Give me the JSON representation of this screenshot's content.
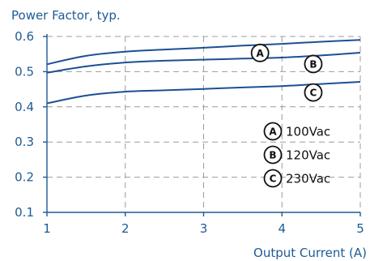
{
  "chart_data": {
    "type": "line",
    "title": "Power Factor, typ.",
    "xlabel": "Output Current (A)",
    "ylabel": "",
    "xlim": [
      1,
      5
    ],
    "ylim": [
      0.1,
      0.6
    ],
    "xticks": [
      "1",
      "2",
      "3",
      "4",
      "5"
    ],
    "yticks": [
      "0.1",
      "0.2",
      "0.3",
      "0.4",
      "0.5",
      "0.6"
    ],
    "grid": true,
    "series": [
      {
        "name": "A",
        "legend_label": "100Vac",
        "x": [
          1,
          1.5,
          2,
          2.5,
          3,
          3.5,
          4,
          4.5,
          5
        ],
        "values": [
          0.521,
          0.545,
          0.557,
          0.563,
          0.568,
          0.574,
          0.579,
          0.585,
          0.59
        ]
      },
      {
        "name": "B",
        "legend_label": "120Vac",
        "x": [
          1,
          1.5,
          2,
          2.5,
          3,
          3.5,
          4,
          4.5,
          5
        ],
        "values": [
          0.497,
          0.515,
          0.526,
          0.531,
          0.534,
          0.537,
          0.54,
          0.546,
          0.554
        ]
      },
      {
        "name": "C",
        "legend_label": "230Vac",
        "x": [
          1,
          1.5,
          2,
          2.5,
          3,
          3.5,
          4,
          4.5,
          5
        ],
        "values": [
          0.41,
          0.432,
          0.443,
          0.447,
          0.451,
          0.455,
          0.459,
          0.465,
          0.471
        ]
      }
    ],
    "curve_labels": [
      {
        "series": "A",
        "x": 3.72
      },
      {
        "series": "B",
        "x": 4.4
      },
      {
        "series": "C",
        "x": 4.4
      }
    ],
    "legend_position": "center-right",
    "colors": {
      "line": "#1d4f93",
      "text": "#1d5b95",
      "grid": "#9c9c9c",
      "marker": "#111111"
    }
  }
}
